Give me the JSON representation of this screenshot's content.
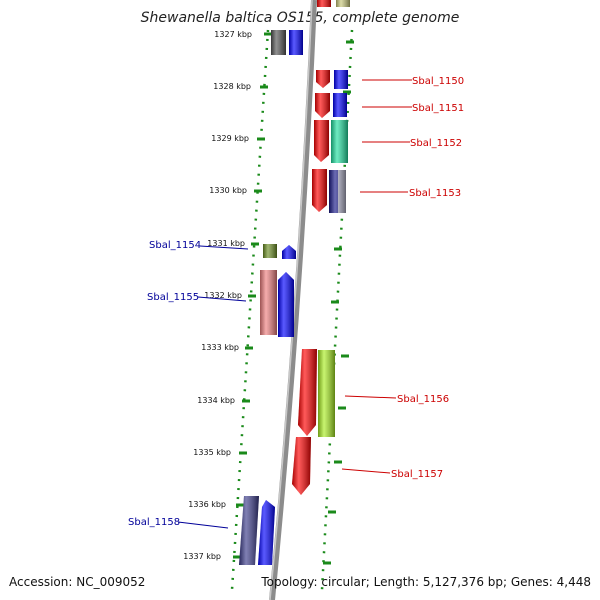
{
  "title": "Shewanella baltica OS155, complete genome",
  "footer": {
    "accession": "Accession: NC_009052",
    "topology": "Topology: circular; Length: 5,127,376 bp; Genes: 4,448"
  },
  "colors": {
    "backbone": "#8a8a8a",
    "dots": "#1a8a1a",
    "fwd_label": "#cc0000",
    "rev_label": "#000099"
  },
  "kbp_labels": [
    "1327 kbp",
    "1328 kbp",
    "1329 kbp",
    "1330 kbp",
    "1331 kbp",
    "1332 kbp",
    "1333 kbp",
    "1334 kbp",
    "1335 kbp",
    "1336 kbp",
    "1337 kbp"
  ],
  "genes": [
    {
      "label": "Sbal_1150",
      "strand": "forward",
      "color": "#ff0000"
    },
    {
      "label": "Sbal_1151",
      "strand": "forward",
      "color": "#ff0000"
    },
    {
      "label": "Sbal_1152",
      "strand": "forward",
      "color": "#ff0000"
    },
    {
      "label": "Sbal_1153",
      "strand": "forward",
      "color": "#ff0000"
    },
    {
      "label": "Sbal_1154",
      "strand": "reverse",
      "color": "#6b8e23"
    },
    {
      "label": "Sbal_1155",
      "strand": "reverse",
      "color": "#f08080"
    },
    {
      "label": "Sbal_1156",
      "strand": "forward",
      "color": "#ff0000"
    },
    {
      "label": "Sbal_1157",
      "strand": "forward",
      "color": "#ff0000"
    },
    {
      "label": "Sbal_1158",
      "strand": "reverse",
      "color": "#3b3b8a"
    }
  ]
}
